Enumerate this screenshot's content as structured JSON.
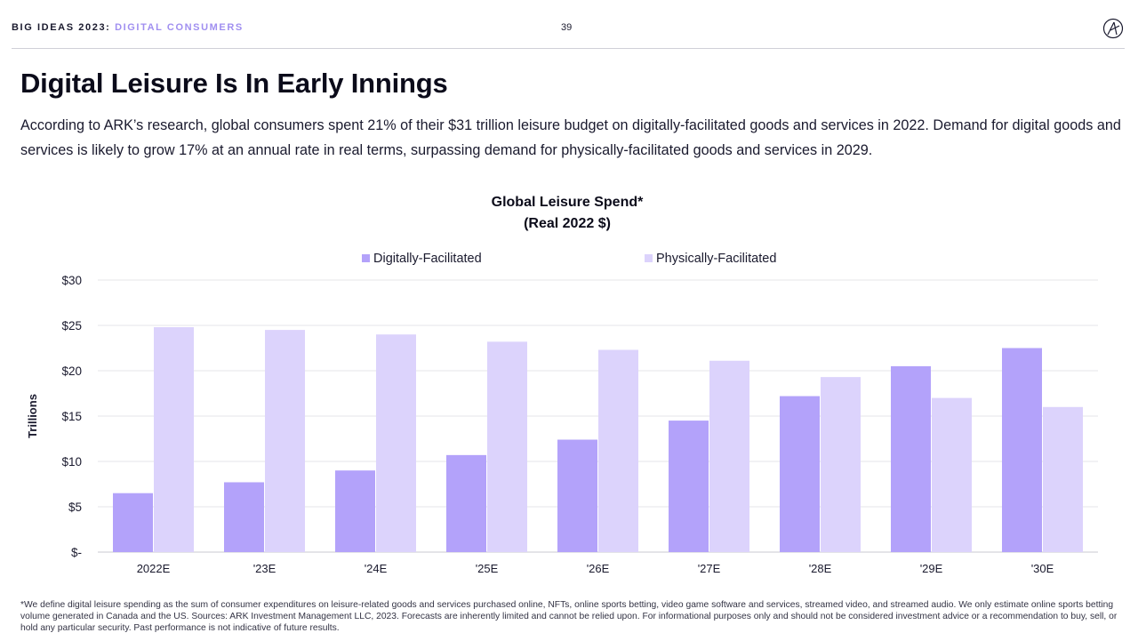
{
  "header": {
    "brand_main": "BIG IDEAS 2023:",
    "brand_sub": "DIGITAL CONSUMERS",
    "page_number": "39",
    "logo_icon": "ark-logo-icon"
  },
  "title": "Digital Leisure Is In Early Innings",
  "description": "According to ARK’s research, global consumers spent 21% of their $31 trillion leisure budget on digitally-facilitated goods and services in 2022. Demand for digital goods and services is likely to grow 17% at an annual rate in real terms, surpassing demand for physically-facilitated goods and services in 2029.",
  "footnote": "*We define digital leisure spending as the sum of consumer expenditures on leisure-related goods and services purchased online, NFTs, online sports betting, video game software and services, streamed video, and streamed audio. We only estimate online sports betting volume generated in Canada and the US. Sources: ARK Investment Management LLC, 2023. Forecasts are inherently limited and cannot be relied upon. For informational purposes only and should not be considered investment advice or a recommendation to buy, sell, or hold any particular security. Past performance is not indicative of future results.",
  "chart_data": {
    "type": "bar",
    "title": "Global Leisure Spend*",
    "subtitle": "(Real 2022 $)",
    "xlabel": "",
    "ylabel": "Trillions",
    "categories": [
      "2022E",
      "'23E",
      "'24E",
      "'25E",
      "'26E",
      "'27E",
      "'28E",
      "'29E",
      "'30E"
    ],
    "series": [
      {
        "name": "Digitally-Facilitated",
        "color": "#b3a2fa",
        "values": [
          6.5,
          7.7,
          9.0,
          10.7,
          12.4,
          14.5,
          17.2,
          20.5,
          22.5
        ]
      },
      {
        "name": "Physically-Facilitated",
        "color": "#dcd3fc",
        "values": [
          24.8,
          24.5,
          24.0,
          23.2,
          22.3,
          21.1,
          19.3,
          17.0,
          16.0
        ]
      }
    ],
    "ylim": [
      0,
      30
    ],
    "yticks": [
      0,
      5,
      10,
      15,
      20,
      25,
      30
    ],
    "ytick_labels": [
      "$-",
      "$5",
      "$10",
      "$15",
      "$20",
      "$25",
      "$30"
    ],
    "grid": true,
    "legend_position": "top-center"
  }
}
